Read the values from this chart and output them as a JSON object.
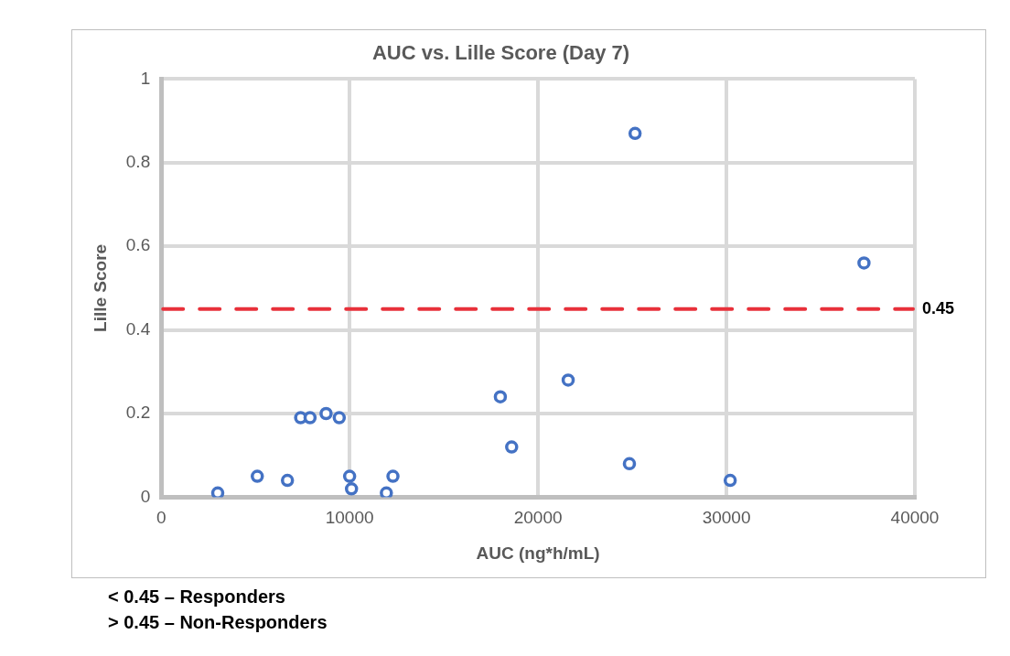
{
  "chart_data": {
    "type": "scatter",
    "title": "AUC vs. Lille Score (Day 7)",
    "xlabel": "AUC (ng*h/mL)",
    "ylabel": "Lille Score",
    "x": [
      3000,
      5100,
      6700,
      7400,
      7900,
      8750,
      9450,
      10000,
      10100,
      11950,
      12300,
      18000,
      18600,
      21600,
      24850,
      25150,
      30200,
      37300
    ],
    "series": [
      {
        "color": "#4472c4",
        "values": [
          0.01,
          0.05,
          0.04,
          0.19,
          0.19,
          0.2,
          0.19,
          0.05,
          0.02,
          0.01,
          0.05,
          0.24,
          0.12,
          0.28,
          0.08,
          0.87,
          0.04,
          0.56
        ]
      }
    ],
    "xlim": [
      0,
      40000
    ],
    "xticks": [
      0,
      10000,
      20000,
      30000,
      40000
    ],
    "ylim": [
      0,
      1
    ],
    "yticks": [
      0,
      0.2,
      0.4,
      0.6,
      0.8,
      1
    ],
    "grid": true,
    "legend": false,
    "marker": "circle",
    "ref_lines": [
      {
        "axis": "y",
        "value": 0.45,
        "label": "0.45",
        "color": "#e8303a",
        "line_style": "dashed"
      }
    ],
    "annotations": [
      "< 0.45 – Responders",
      "> 0.45 – Non-Responders"
    ]
  }
}
